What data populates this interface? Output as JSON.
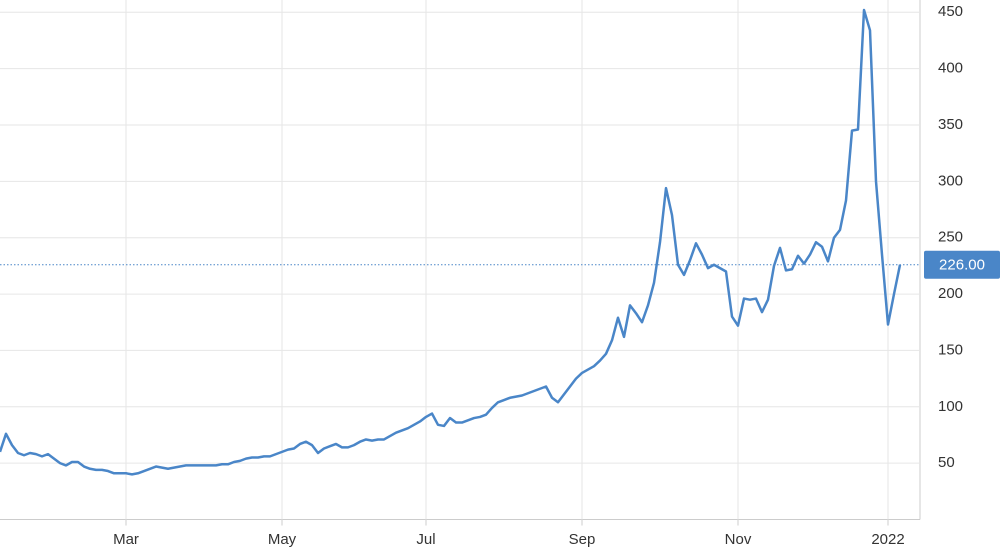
{
  "chart_data": {
    "type": "line",
    "categories": [
      null,
      null,
      null,
      null,
      null,
      null,
      null,
      null,
      null,
      null,
      null,
      null,
      null,
      null,
      null,
      null,
      null,
      null,
      null,
      null,
      null,
      "Mar",
      null,
      null,
      null,
      null,
      null,
      null,
      null,
      null,
      null,
      null,
      null,
      null,
      null,
      null,
      null,
      null,
      null,
      null,
      null,
      null,
      null,
      null,
      null,
      null,
      null,
      "May",
      null,
      null,
      null,
      null,
      null,
      null,
      null,
      null,
      null,
      null,
      null,
      null,
      null,
      null,
      null,
      null,
      null,
      null,
      null,
      null,
      null,
      null,
      null,
      "Jul",
      null,
      null,
      null,
      null,
      null,
      null,
      null,
      null,
      null,
      null,
      null,
      null,
      null,
      null,
      null,
      null,
      null,
      null,
      null,
      null,
      null,
      null,
      null,
      null,
      null,
      "Sep",
      null,
      null,
      null,
      null,
      null,
      null,
      null,
      null,
      null,
      null,
      null,
      null,
      null,
      null,
      null,
      null,
      null,
      null,
      null,
      null,
      null,
      null,
      null,
      null,
      null,
      "Nov",
      null,
      null,
      null,
      null,
      null,
      null,
      null,
      null,
      null,
      null,
      null,
      null,
      null,
      null,
      null,
      null,
      null,
      null,
      null,
      null,
      null,
      null,
      null,
      null,
      "2022",
      null,
      null
    ],
    "values": [
      60,
      76,
      66,
      59,
      57,
      59,
      58,
      56,
      58,
      54,
      50,
      48,
      51,
      51,
      47,
      45,
      44,
      44,
      43,
      41,
      41,
      41,
      40,
      41,
      43,
      45,
      47,
      46,
      45,
      46,
      47,
      48,
      48,
      48,
      48,
      48,
      48,
      49,
      49,
      51,
      52,
      54,
      55,
      55,
      56,
      56,
      58,
      60,
      62,
      63,
      67,
      69,
      66,
      59,
      63,
      65,
      67,
      64,
      64,
      66,
      69,
      71,
      70,
      71,
      71,
      74,
      77,
      79,
      81,
      84,
      87,
      91,
      94,
      84,
      83,
      90,
      86,
      86,
      88,
      90,
      91,
      93,
      99,
      104,
      106,
      108,
      109,
      110,
      112,
      114,
      116,
      118,
      108,
      104,
      111,
      118,
      125,
      130,
      133,
      136,
      141,
      147,
      159,
      179,
      162,
      190,
      183,
      175,
      190,
      210,
      246,
      294,
      270,
      226,
      217,
      230,
      245,
      235,
      223,
      226,
      223,
      220,
      180,
      172,
      196,
      195,
      196,
      184,
      195,
      225,
      241,
      221,
      222,
      234,
      227,
      235,
      246,
      242,
      229,
      250,
      257,
      283,
      345,
      346,
      452,
      434,
      300,
      235,
      173,
      200,
      226
    ],
    "color": "#4a86c8",
    "ylim": [
      0,
      460
    ],
    "yticks": [
      50,
      100,
      150,
      200,
      250,
      300,
      350,
      400,
      450
    ],
    "grid": true,
    "last_value": {
      "value": 226,
      "label": "226.00"
    }
  }
}
